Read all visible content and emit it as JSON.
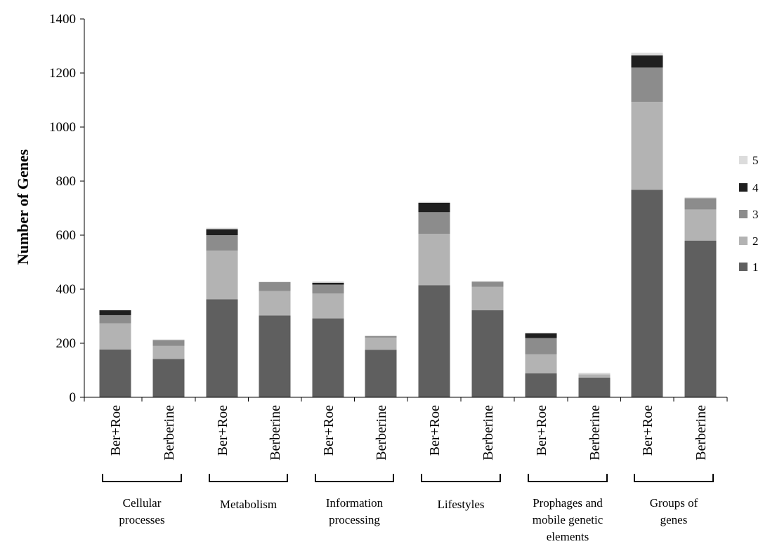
{
  "chart_data": {
    "type": "bar",
    "stacked": true,
    "title": "",
    "xlabel": "",
    "ylabel": "Number of Genes",
    "ylim": [
      0,
      1400
    ],
    "yticks": [
      0,
      200,
      400,
      600,
      800,
      1000,
      1200,
      1400
    ],
    "grid": false,
    "legend_position": "right",
    "categories": [
      "Ber+Roe",
      "Berberine",
      "Ber+Roe",
      "Berberine",
      "Ber+Roe",
      "Berberine",
      "Ber+Roe",
      "Berberine",
      "Ber+Roe",
      "Berberine",
      "Ber+Roe",
      "Berberine"
    ],
    "groups": [
      {
        "label": "Cellular processes"
      },
      {
        "label": "Metabolism"
      },
      {
        "label": "Information processing"
      },
      {
        "label": "Lifestyles"
      },
      {
        "label": "Prophages and mobile genetic elements"
      },
      {
        "label": "Groups of genes"
      }
    ],
    "series": [
      {
        "name": "1",
        "color": "#5f5f5f",
        "values": [
          177,
          142,
          363,
          303,
          292,
          176,
          415,
          322,
          89,
          73,
          768,
          580
        ]
      },
      {
        "name": "2",
        "color": "#b3b3b3",
        "values": [
          97,
          48,
          180,
          90,
          92,
          45,
          190,
          87,
          70,
          12,
          325,
          115
        ]
      },
      {
        "name": "3",
        "color": "#8c8c8c",
        "values": [
          30,
          22,
          57,
          33,
          33,
          5,
          80,
          19,
          60,
          0,
          127,
          42
        ]
      },
      {
        "name": "4",
        "color": "#1f1f1f",
        "values": [
          18,
          0,
          22,
          0,
          7,
          0,
          35,
          0,
          18,
          0,
          45,
          0
        ]
      },
      {
        "name": "5",
        "color": "#dcdcdc",
        "values": [
          0,
          2,
          5,
          2,
          5,
          3,
          3,
          2,
          0,
          6,
          10,
          3
        ]
      }
    ]
  }
}
